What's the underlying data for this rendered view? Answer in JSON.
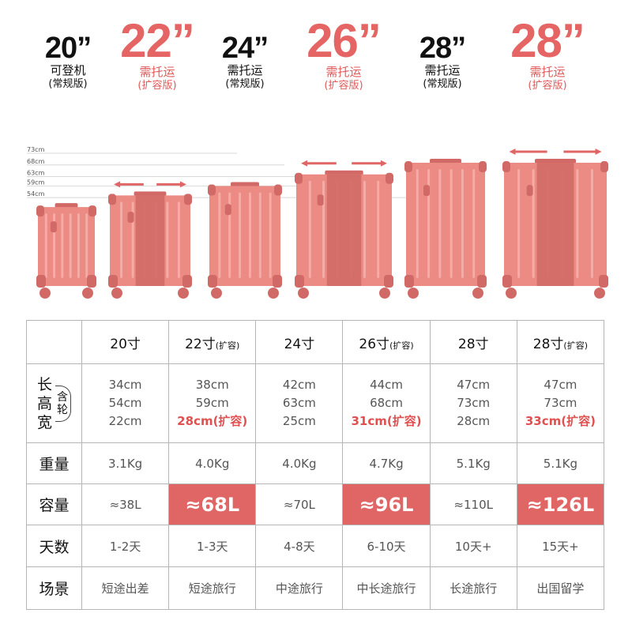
{
  "headers": [
    {
      "size": "20”",
      "line1": "可登机",
      "line2": "(常规版)",
      "style": "black"
    },
    {
      "size": "22”",
      "line1": "需托运",
      "line2": "(扩容版)",
      "style": "red"
    },
    {
      "size": "24”",
      "line1": "需托运",
      "line2": "(常规版)",
      "style": "black"
    },
    {
      "size": "26”",
      "line1": "需托运",
      "line2": "(扩容版)",
      "style": "red"
    },
    {
      "size": "28”",
      "line1": "需托运",
      "line2": "(常规版)",
      "style": "black"
    },
    {
      "size": "28”",
      "line1": "需托运",
      "line2": "(扩容版)",
      "style": "red"
    }
  ],
  "height_marks": [
    "73cm",
    "68cm",
    "63cm",
    "59cm",
    "54cm"
  ],
  "luggage_heights_cm": [
    54,
    59,
    63,
    68,
    73,
    73
  ],
  "expandable": [
    false,
    true,
    false,
    true,
    false,
    true
  ],
  "colors": {
    "accent": "#e06666",
    "luggage": "#ec8a84",
    "luggage_dark": "#d16a66",
    "luggage_light": "#f5aca7"
  },
  "table": {
    "columns": [
      {
        "name": "20寸",
        "tag": ""
      },
      {
        "name": "22寸",
        "tag": "(扩容)"
      },
      {
        "name": "24寸",
        "tag": ""
      },
      {
        "name": "26寸",
        "tag": "(扩容)"
      },
      {
        "name": "28寸",
        "tag": ""
      },
      {
        "name": "28寸",
        "tag": "(扩容)"
      }
    ],
    "dim_label": "长高宽",
    "dim_note": "(含轮)",
    "dims": [
      {
        "l": "34cm",
        "h": "54cm",
        "w": "22cm",
        "hl": false
      },
      {
        "l": "38cm",
        "h": "59cm",
        "w": "28cm(扩容)",
        "hl": true
      },
      {
        "l": "42cm",
        "h": "63cm",
        "w": "25cm",
        "hl": false
      },
      {
        "l": "44cm",
        "h": "68cm",
        "w": "31cm(扩容)",
        "hl": true
      },
      {
        "l": "47cm",
        "h": "73cm",
        "w": "28cm",
        "hl": false
      },
      {
        "l": "47cm",
        "h": "73cm",
        "w": "33cm(扩容)",
        "hl": true
      }
    ],
    "weight_label": "重量",
    "weights": [
      "3.1Kg",
      "4.0Kg",
      "4.0Kg",
      "4.7Kg",
      "5.1Kg",
      "5.1Kg"
    ],
    "capacity_label": "容量",
    "capacities": [
      {
        "v": "≈38L",
        "hl": false
      },
      {
        "v": "≈68L",
        "hl": true
      },
      {
        "v": "≈70L",
        "hl": false
      },
      {
        "v": "≈96L",
        "hl": true
      },
      {
        "v": "≈110L",
        "hl": false
      },
      {
        "v": "≈126L",
        "hl": true
      }
    ],
    "days_label": "天数",
    "days": [
      "1-2天",
      "1-3天",
      "4-8天",
      "6-10天",
      "10天+",
      "15天+"
    ],
    "scene_label": "场景",
    "scenes": [
      "短途出差",
      "短途旅行",
      "中途旅行",
      "中长途旅行",
      "长途旅行",
      "出国留学"
    ]
  }
}
